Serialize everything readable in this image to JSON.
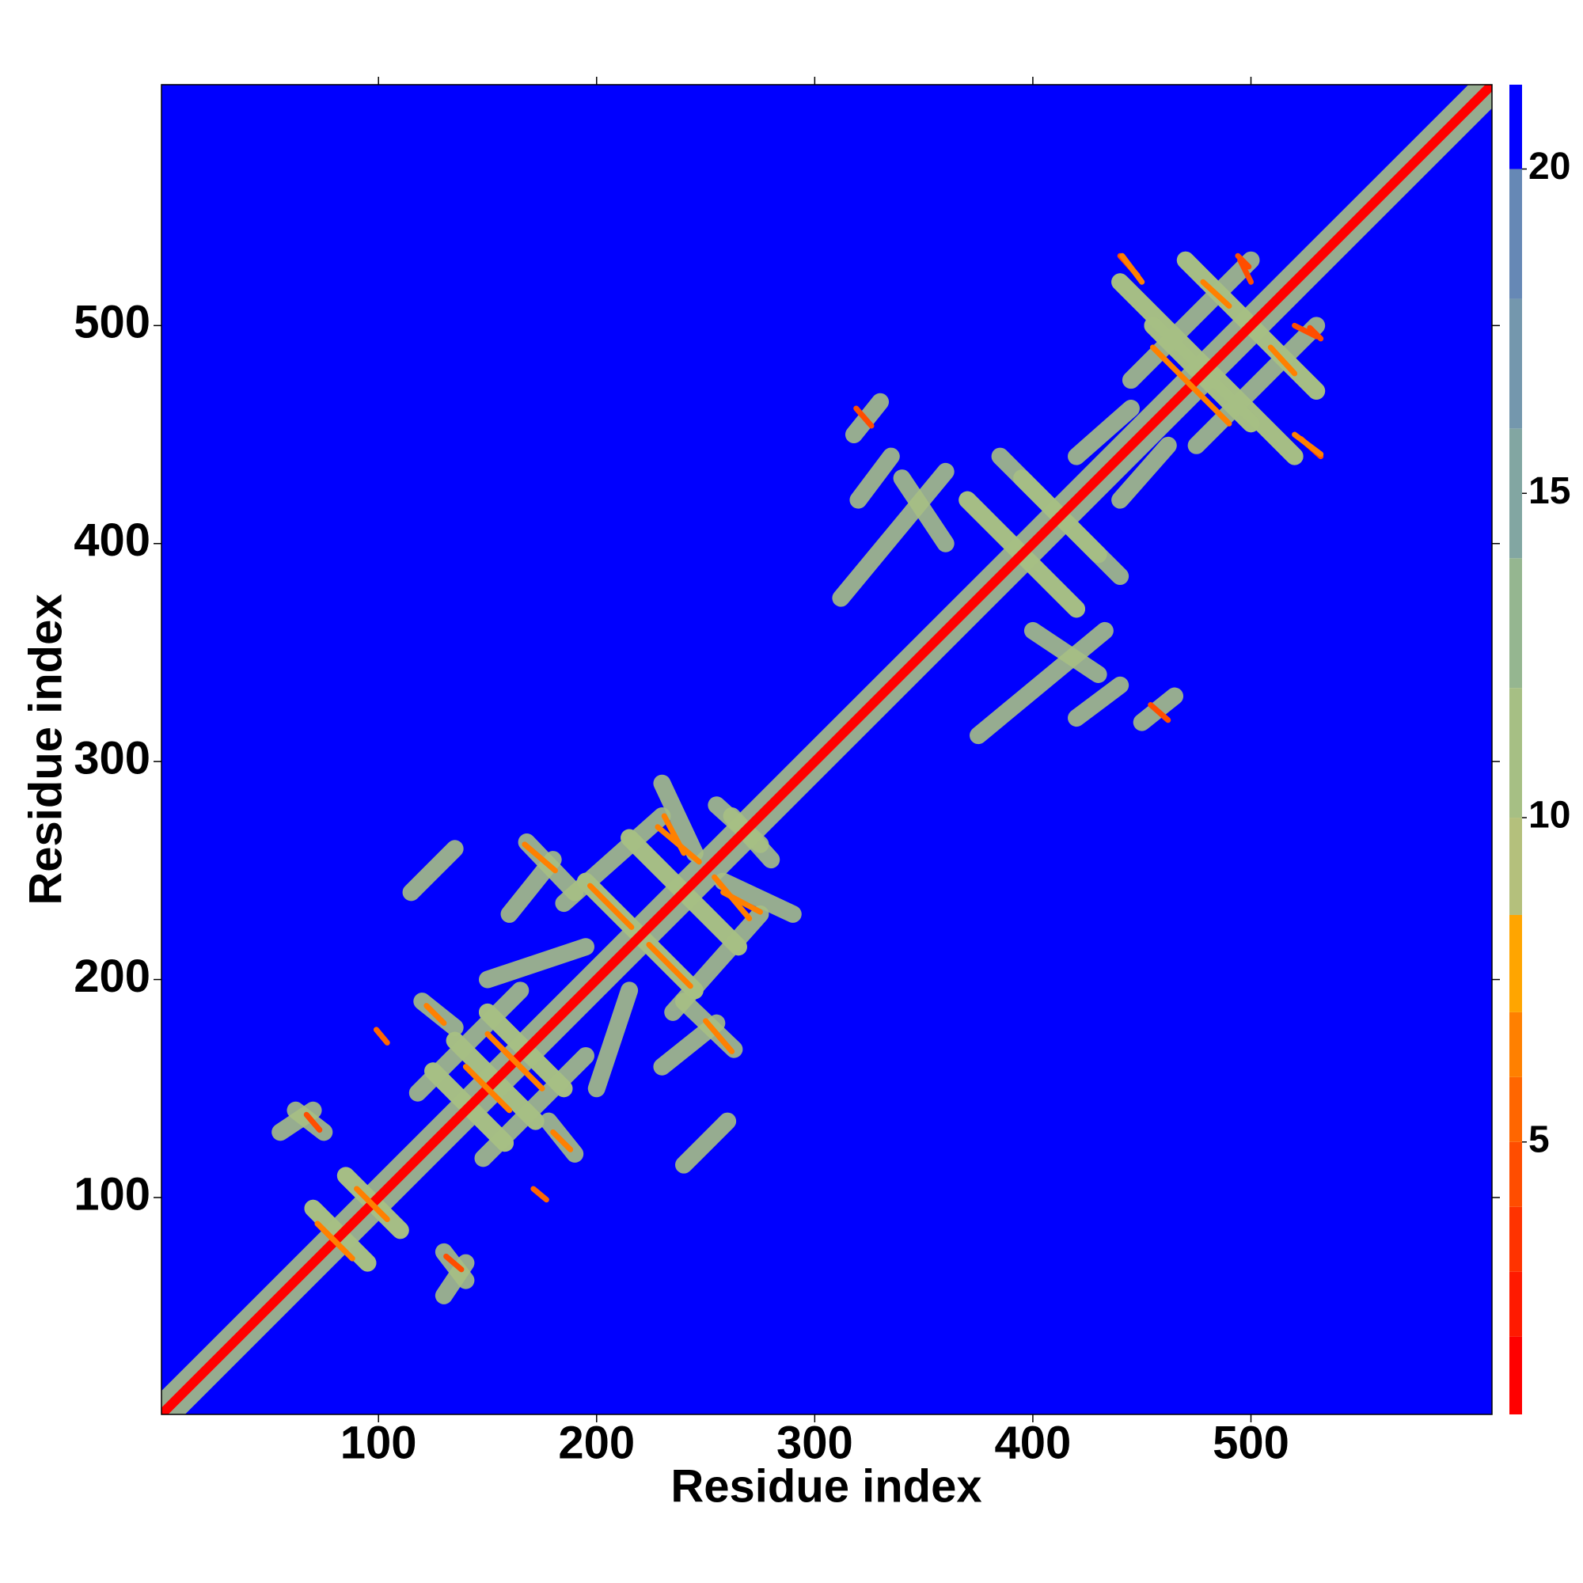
{
  "chart_data": {
    "type": "heatmap",
    "xlabel": "Residue index",
    "ylabel": "Residue index",
    "xlim": [
      0.5,
      610.5
    ],
    "ylim": [
      0.5,
      610.5
    ],
    "xticks": [
      100,
      200,
      300,
      400,
      500
    ],
    "yticks": [
      100,
      200,
      300,
      400,
      500
    ],
    "background": 21,
    "symmetric": true,
    "colorbar": {
      "lim": [
        0.8,
        21.3
      ],
      "ticks": [
        5,
        10,
        15,
        20
      ],
      "levels": [
        0.8,
        2,
        3,
        4,
        5,
        6,
        7,
        8.5,
        10,
        12,
        14,
        16,
        18,
        20,
        21.3
      ],
      "colors": [
        "#ff0000",
        "#ff1a00",
        "#ff3300",
        "#ff4d00",
        "#ff6600",
        "#ff8000",
        "#ffa500",
        "#b4c07c",
        "#a6bf84",
        "#95b690",
        "#82a6a2",
        "#7497ad",
        "#6688b5",
        "#0000ff"
      ]
    },
    "regions": [
      {
        "x": [
          1,
          610
        ],
        "y": [
          1,
          610
        ],
        "value": 11
      },
      {
        "x": [
          70,
          95
        ],
        "y": [
          95,
          70
        ],
        "value": 11
      },
      {
        "x": [
          85,
          110
        ],
        "y": [
          110,
          85
        ],
        "value": 11
      },
      {
        "x": [
          55,
          70
        ],
        "y": [
          130,
          140
        ],
        "value": 11
      },
      {
        "x": [
          62,
          75
        ],
        "y": [
          140,
          130
        ],
        "value": 11
      },
      {
        "x": [
          125,
          158
        ],
        "y": [
          158,
          125
        ],
        "value": 11
      },
      {
        "x": [
          135,
          172
        ],
        "y": [
          172,
          135
        ],
        "value": 11
      },
      {
        "x": [
          150,
          185
        ],
        "y": [
          185,
          150
        ],
        "value": 11
      },
      {
        "x": [
          118,
          165
        ],
        "y": [
          148,
          195
        ],
        "value": 11
      },
      {
        "x": [
          120,
          135
        ],
        "y": [
          190,
          178
        ],
        "value": 11
      },
      {
        "x": [
          195,
          245
        ],
        "y": [
          245,
          195
        ],
        "value": 11
      },
      {
        "x": [
          215,
          265
        ],
        "y": [
          265,
          215
        ],
        "value": 11
      },
      {
        "x": [
          185,
          230
        ],
        "y": [
          235,
          275
        ],
        "value": 11
      },
      {
        "x": [
          168,
          190
        ],
        "y": [
          263,
          240
        ],
        "value": 11
      },
      {
        "x": [
          230,
          245
        ],
        "y": [
          290,
          258
        ],
        "value": 11
      },
      {
        "x": [
          160,
          180
        ],
        "y": [
          230,
          255
        ],
        "value": 11
      },
      {
        "x": [
          115,
          135
        ],
        "y": [
          240,
          260
        ],
        "value": 11
      },
      {
        "x": [
          150,
          195
        ],
        "y": [
          200,
          215
        ],
        "value": 11
      },
      {
        "x": [
          255,
          275
        ],
        "y": [
          280,
          262
        ],
        "value": 11
      },
      {
        "x": [
          320,
          335
        ],
        "y": [
          420,
          440
        ],
        "value": 11
      },
      {
        "x": [
          340,
          360
        ],
        "y": [
          430,
          400
        ],
        "value": 11
      },
      {
        "x": [
          370,
          420
        ],
        "y": [
          420,
          370
        ],
        "value": 11
      },
      {
        "x": [
          385,
          430
        ],
        "y": [
          440,
          395
        ],
        "value": 11
      },
      {
        "x": [
          312,
          360
        ],
        "y": [
          375,
          433
        ],
        "value": 11
      },
      {
        "x": [
          318,
          330
        ],
        "y": [
          450,
          465
        ],
        "value": 11
      },
      {
        "x": [
          440,
          520
        ],
        "y": [
          520,
          440
        ],
        "value": 11
      },
      {
        "x": [
          455,
          500
        ],
        "y": [
          500,
          455
        ],
        "value": 11
      },
      {
        "x": [
          470,
          530
        ],
        "y": [
          530,
          470
        ],
        "value": 11
      },
      {
        "x": [
          445,
          500
        ],
        "y": [
          475,
          530
        ],
        "value": 11
      },
      {
        "x": [
          420,
          445
        ],
        "y": [
          440,
          462
        ],
        "value": 11
      }
    ],
    "contacts": [
      {
        "x": [
          1,
          610
        ],
        "y": [
          1,
          610
        ],
        "value": 1.5
      },
      {
        "x": [
          67,
          73
        ],
        "y": [
          138,
          131
        ],
        "value": 4
      },
      {
        "x": [
          99,
          104
        ],
        "y": [
          177,
          171
        ],
        "value": 5
      },
      {
        "x": [
          72,
          88
        ],
        "y": [
          88,
          72
        ],
        "value": 6
      },
      {
        "x": [
          90,
          104
        ],
        "y": [
          104,
          90
        ],
        "value": 6
      },
      {
        "x": [
          122,
          130
        ],
        "y": [
          188,
          180
        ],
        "value": 6
      },
      {
        "x": [
          140,
          160
        ],
        "y": [
          160,
          140
        ],
        "value": 6
      },
      {
        "x": [
          150,
          175
        ],
        "y": [
          175,
          150
        ],
        "value": 6
      },
      {
        "x": [
          167,
          181
        ],
        "y": [
          262,
          250
        ],
        "value": 6
      },
      {
        "x": [
          197,
          216
        ],
        "y": [
          243,
          224
        ],
        "value": 6
      },
      {
        "x": [
          231,
          240
        ],
        "y": [
          275,
          258
        ],
        "value": 6
      },
      {
        "x": [
          228,
          247
        ],
        "y": [
          270,
          254
        ],
        "value": 6
      },
      {
        "x": [
          319,
          326
        ],
        "y": [
          462,
          454
        ],
        "value": 4
      },
      {
        "x": [
          440,
          448
        ],
        "y": [
          532,
          523
        ],
        "value": 4
      },
      {
        "x": [
          478,
          490
        ],
        "y": [
          520,
          509
        ],
        "value": 6
      },
      {
        "x": [
          494,
          499
        ],
        "y": [
          532,
          527
        ],
        "value": 4
      },
      {
        "x": [
          455,
          473
        ],
        "y": [
          490,
          472
        ],
        "value": 6
      },
      {
        "x": [
          495,
          500
        ],
        "y": [
          530,
          520
        ],
        "value": 4
      },
      {
        "x": [
          441,
          450
        ],
        "y": [
          532,
          520
        ],
        "value": 6
      }
    ]
  }
}
